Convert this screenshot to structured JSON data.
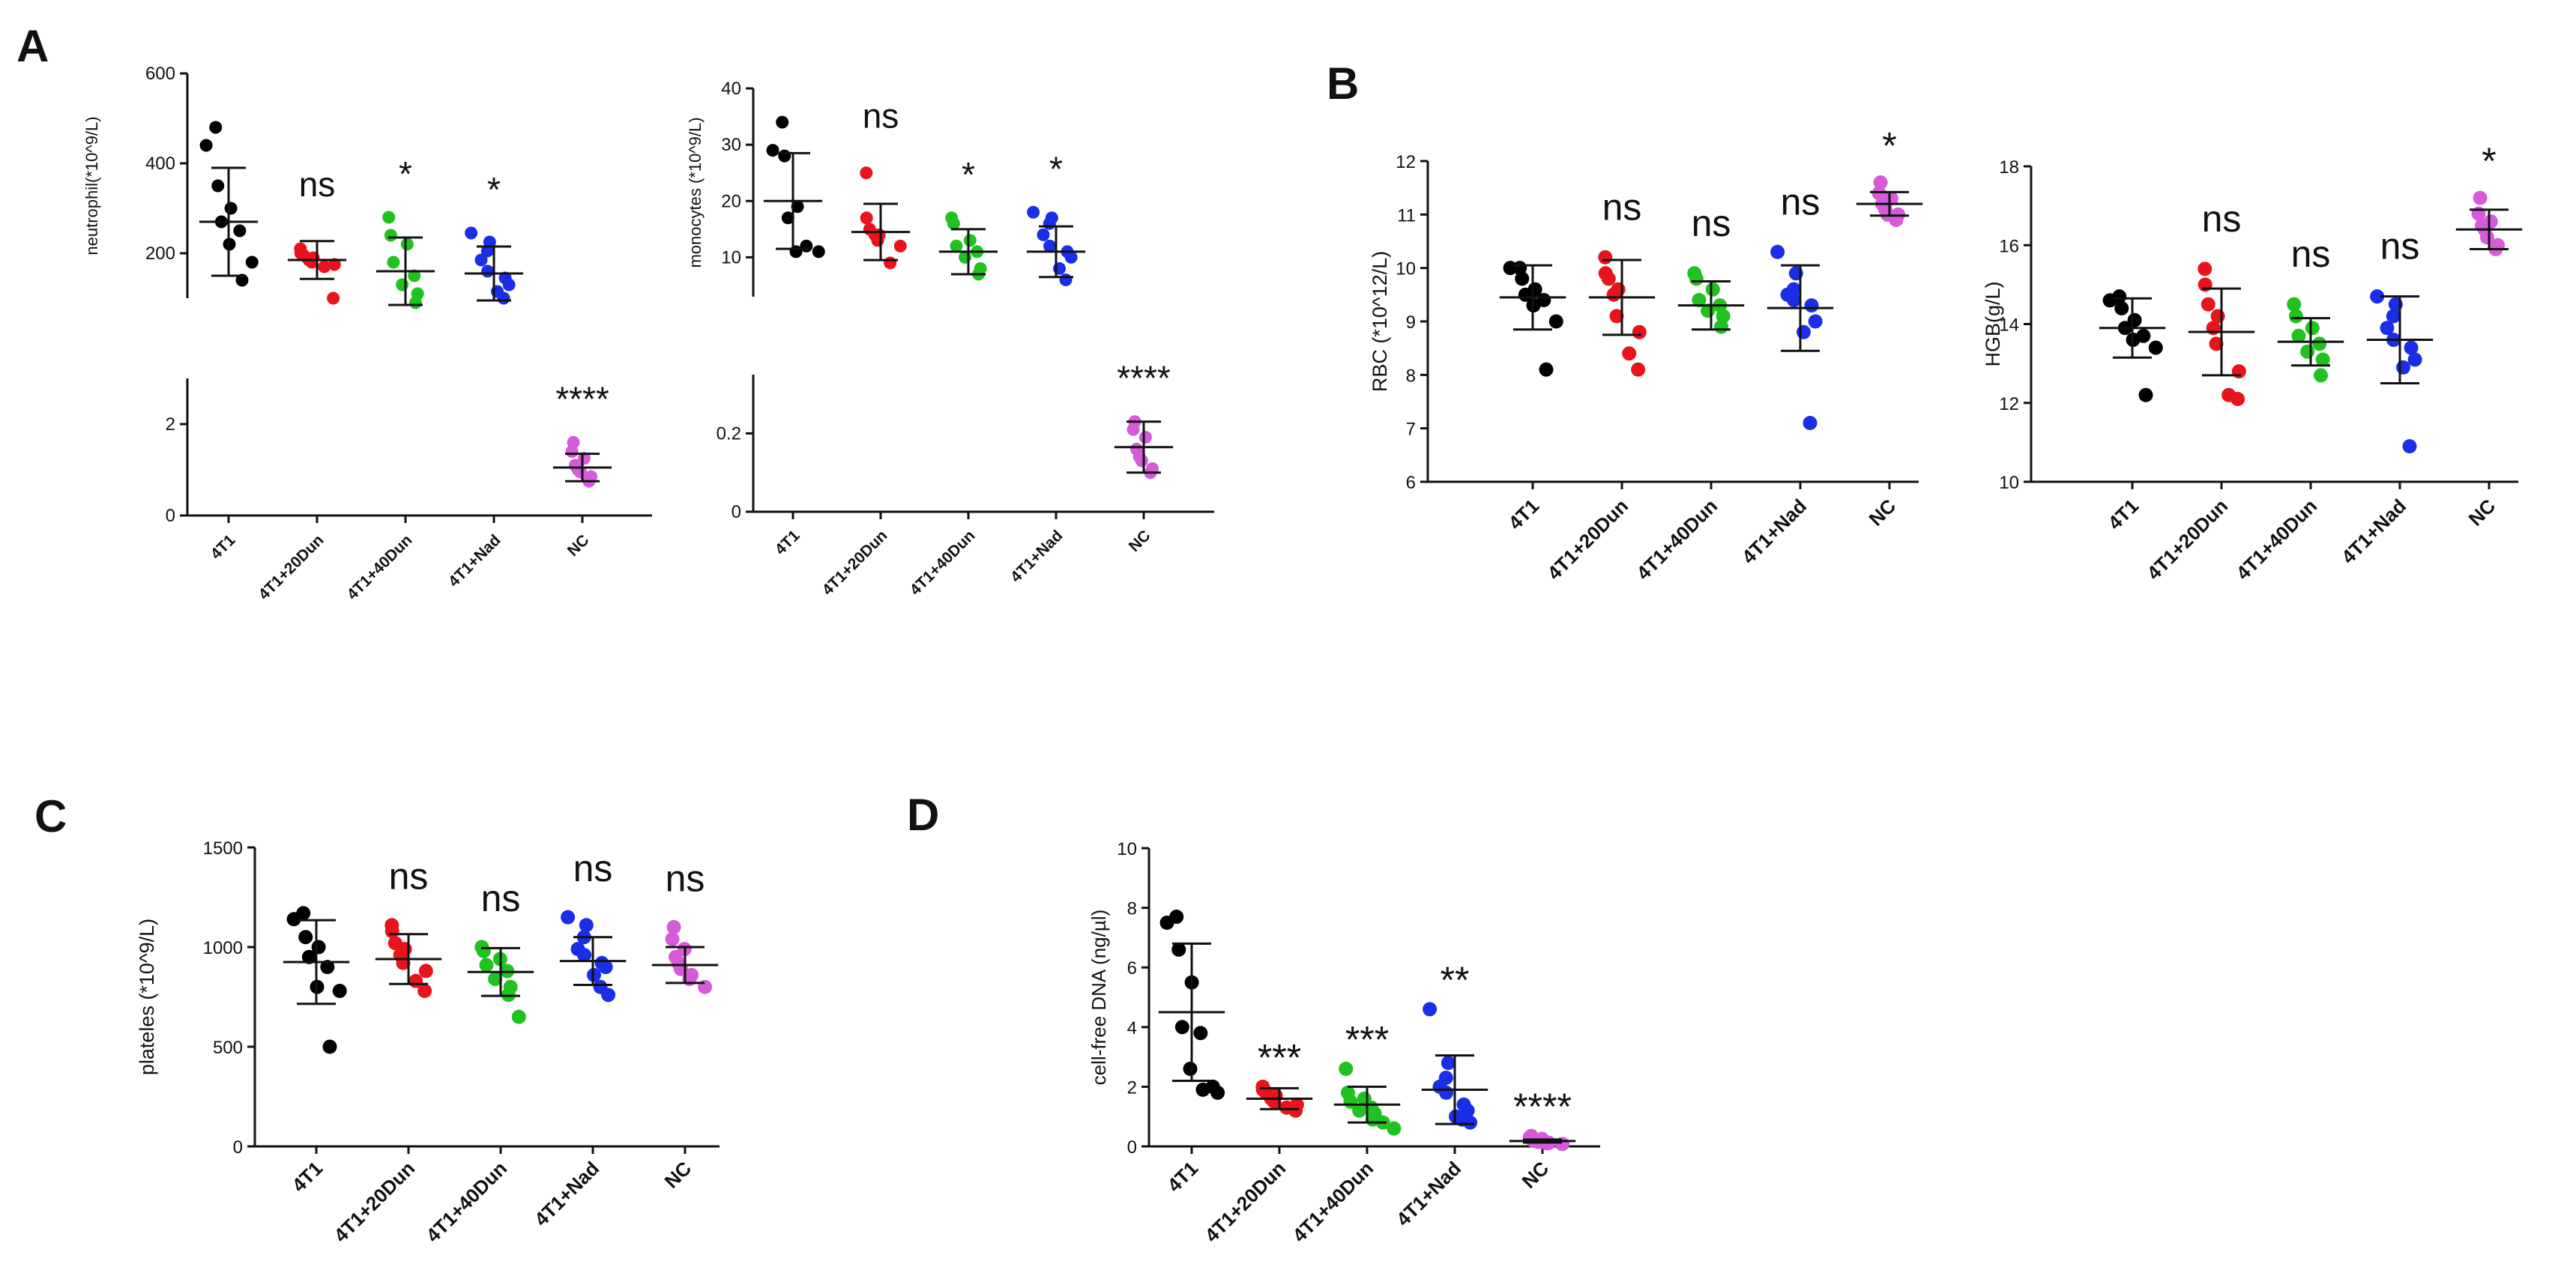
{
  "chart_data": [
    {
      "panel": "A",
      "type": "scatter",
      "ylabel": "neutrophil(*10^9/L)",
      "categories": [
        "4T1",
        "4T1+20Dun",
        "4T1+40Dun",
        "4T1+Nad",
        "NC"
      ],
      "ylim_top": [
        100,
        600
      ],
      "yticks_top": [
        200,
        400,
        600
      ],
      "ylim_bottom": [
        0,
        3
      ],
      "yticks_bottom": [
        0,
        2
      ],
      "colors": [
        "#000000",
        "#e8141c",
        "#1fc21f",
        "#1a2ee6",
        "#d65ad9"
      ],
      "series": [
        {
          "name": "4T1",
          "points": [
            480,
            440,
            350,
            300,
            270,
            250,
            220,
            180,
            140
          ],
          "mean": 270,
          "sd": 120,
          "sig": ""
        },
        {
          "name": "4T1+20Dun",
          "points": [
            210,
            200,
            195,
            190,
            185,
            180,
            175,
            170,
            100
          ],
          "mean": 185,
          "sd": 42,
          "sig": "ns"
        },
        {
          "name": "4T1+40Dun",
          "points": [
            280,
            240,
            220,
            180,
            150,
            130,
            110,
            90
          ],
          "mean": 160,
          "sd": 75,
          "sig": "*"
        },
        {
          "name": "4T1+Nad",
          "points": [
            245,
            225,
            205,
            185,
            160,
            145,
            130,
            115,
            100
          ],
          "mean": 155,
          "sd": 60,
          "sig": "*"
        },
        {
          "name": "NC",
          "points": [
            1.6,
            1.4,
            1.25,
            1.1,
            1.0,
            0.95,
            0.85,
            0.75
          ],
          "mean": 1.05,
          "sd": 0.3,
          "sig": "****"
        }
      ]
    },
    {
      "panel": "A2",
      "type": "scatter",
      "ylabel": "monocytes (*10^9/L)",
      "categories": [
        "4T1",
        "4T1+20Dun",
        "4T1+40Dun",
        "4T1+Nad",
        "NC"
      ],
      "ylim_top": [
        3,
        40
      ],
      "yticks_top": [
        10,
        20,
        30,
        40
      ],
      "ylim_bottom": [
        0,
        0.35
      ],
      "yticks_bottom": [
        0,
        0.2
      ],
      "colors": [
        "#000000",
        "#e8141c",
        "#1fc21f",
        "#1a2ee6",
        "#d65ad9"
      ],
      "series": [
        {
          "name": "4T1",
          "points": [
            34,
            29,
            28,
            19,
            17,
            12,
            11,
            11
          ],
          "mean": 20,
          "sd": 8.5,
          "sig": ""
        },
        {
          "name": "4T1+20Dun",
          "points": [
            25,
            17,
            15,
            14,
            14,
            13,
            12,
            9
          ],
          "mean": 14.5,
          "sd": 5,
          "sig": "ns"
        },
        {
          "name": "4T1+40Dun",
          "points": [
            17,
            16,
            13,
            12,
            11,
            10,
            8,
            7
          ],
          "mean": 11,
          "sd": 4,
          "sig": "*"
        },
        {
          "name": "4T1+Nad",
          "points": [
            18,
            17,
            16,
            14,
            12,
            11,
            10,
            8,
            6
          ],
          "mean": 11,
          "sd": 4.5,
          "sig": "*"
        },
        {
          "name": "NC",
          "points": [
            0.23,
            0.21,
            0.19,
            0.16,
            0.14,
            0.13,
            0.11,
            0.1
          ],
          "mean": 0.165,
          "sd": 0.065,
          "sig": "****"
        }
      ]
    },
    {
      "panel": "B",
      "type": "scatter",
      "ylabel": "RBC (*10^12/L)",
      "categories": [
        "4T1",
        "4T1+20Dun",
        "4T1+40Dun",
        "4T1+Nad",
        "NC"
      ],
      "ylim": [
        6,
        12
      ],
      "yticks": [
        6,
        7,
        8,
        9,
        10,
        11,
        12
      ],
      "colors": [
        "#000000",
        "#e8141c",
        "#1fc21f",
        "#1a2ee6",
        "#d65ad9"
      ],
      "series": [
        {
          "name": "4T1",
          "points": [
            10.0,
            10.0,
            9.8,
            9.6,
            9.5,
            9.4,
            9.3,
            9.0,
            8.1
          ],
          "mean": 9.45,
          "sd": 0.6,
          "sig": ""
        },
        {
          "name": "4T1+20Dun",
          "points": [
            10.2,
            9.9,
            9.8,
            9.6,
            9.5,
            9.1,
            8.8,
            8.4,
            8.1
          ],
          "mean": 9.45,
          "sd": 0.7,
          "sig": "ns"
        },
        {
          "name": "4T1+40Dun",
          "points": [
            9.9,
            9.8,
            9.6,
            9.4,
            9.3,
            9.2,
            9.1,
            8.9
          ],
          "mean": 9.3,
          "sd": 0.45,
          "sig": "ns"
        },
        {
          "name": "4T1+Nad",
          "points": [
            10.3,
            9.9,
            9.6,
            9.5,
            9.4,
            9.3,
            9.0,
            8.8,
            7.1
          ],
          "mean": 9.25,
          "sd": 0.8,
          "sig": "ns"
        },
        {
          "name": "NC",
          "points": [
            11.6,
            11.4,
            11.3,
            11.2,
            11.1,
            11.0,
            11.0,
            10.9
          ],
          "mean": 11.2,
          "sd": 0.22,
          "sig": "*"
        }
      ]
    },
    {
      "panel": "B2",
      "type": "scatter",
      "ylabel": "HGB(g/L)",
      "categories": [
        "4T1",
        "4T1+20Dun",
        "4T1+40Dun",
        "4T1+Nad",
        "NC"
      ],
      "ylim": [
        10,
        18
      ],
      "yticks": [
        10,
        12,
        14,
        16,
        18
      ],
      "colors": [
        "#000000",
        "#e8141c",
        "#1fc21f",
        "#1a2ee6",
        "#d65ad9"
      ],
      "series": [
        {
          "name": "4T1",
          "points": [
            14.7,
            14.6,
            14.4,
            14.1,
            13.9,
            13.7,
            13.6,
            13.4,
            12.2
          ],
          "mean": 13.9,
          "sd": 0.75,
          "sig": ""
        },
        {
          "name": "4T1+20Dun",
          "points": [
            15.4,
            15.0,
            14.5,
            14.2,
            13.9,
            13.5,
            12.8,
            12.2,
            12.1
          ],
          "mean": 13.8,
          "sd": 1.1,
          "sig": "ns"
        },
        {
          "name": "4T1+40Dun",
          "points": [
            14.5,
            14.2,
            13.9,
            13.7,
            13.5,
            13.3,
            13.1,
            12.7
          ],
          "mean": 13.55,
          "sd": 0.6,
          "sig": "ns"
        },
        {
          "name": "4T1+Nad",
          "points": [
            14.7,
            14.5,
            14.2,
            13.9,
            13.6,
            13.4,
            13.1,
            12.9,
            10.9
          ],
          "mean": 13.6,
          "sd": 1.1,
          "sig": "ns"
        },
        {
          "name": "NC",
          "points": [
            17.2,
            16.8,
            16.6,
            16.5,
            16.4,
            16.2,
            16.0,
            15.9
          ],
          "mean": 16.4,
          "sd": 0.5,
          "sig": "*"
        }
      ]
    },
    {
      "panel": "C",
      "type": "scatter",
      "ylabel": "plateles (*10^9/L)",
      "categories": [
        "4T1",
        "4T1+20Dun",
        "4T1+40Dun",
        "4T1+Nad",
        "NC"
      ],
      "ylim": [
        0,
        1500
      ],
      "yticks": [
        0,
        500,
        1000,
        1500
      ],
      "colors": [
        "#000000",
        "#e8141c",
        "#1fc21f",
        "#1a2ee6",
        "#d65ad9"
      ],
      "series": [
        {
          "name": "4T1",
          "points": [
            1170,
            1140,
            1050,
            1000,
            950,
            900,
            800,
            780,
            500
          ],
          "mean": 925,
          "sd": 210,
          "sig": ""
        },
        {
          "name": "4T1+20Dun",
          "points": [
            1110,
            1080,
            1020,
            990,
            960,
            920,
            880,
            830,
            780
          ],
          "mean": 940,
          "sd": 125,
          "sig": "ns"
        },
        {
          "name": "4T1+40Dun",
          "points": [
            1000,
            980,
            940,
            910,
            880,
            840,
            800,
            760,
            650
          ],
          "mean": 875,
          "sd": 120,
          "sig": "ns"
        },
        {
          "name": "4T1+Nad",
          "points": [
            1150,
            1110,
            1050,
            990,
            960,
            920,
            900,
            860,
            800,
            760
          ],
          "mean": 930,
          "sd": 120,
          "sig": "ns"
        },
        {
          "name": "NC",
          "points": [
            1100,
            1040,
            990,
            950,
            920,
            890,
            860,
            840,
            800
          ],
          "mean": 910,
          "sd": 90,
          "sig": "ns"
        }
      ]
    },
    {
      "panel": "D",
      "type": "scatter",
      "ylabel": "cell-free DNA (ng/µl)",
      "categories": [
        "4T1",
        "4T1+20Dun",
        "4T1+40Dun",
        "4T1+Nad",
        "NC"
      ],
      "ylim": [
        0,
        10
      ],
      "yticks": [
        0,
        2,
        4,
        6,
        8,
        10
      ],
      "colors": [
        "#000000",
        "#e8141c",
        "#1fc21f",
        "#1a2ee6",
        "#d65ad9"
      ],
      "series": [
        {
          "name": "4T1",
          "points": [
            7.7,
            7.5,
            6.6,
            5.5,
            4.0,
            3.8,
            2.6,
            2.0,
            1.9,
            1.8
          ],
          "mean": 4.5,
          "sd": 2.3,
          "sig": ""
        },
        {
          "name": "4T1+20Dun",
          "points": [
            2.0,
            1.9,
            1.8,
            1.7,
            1.6,
            1.5,
            1.4,
            1.3,
            1.2
          ],
          "mean": 1.6,
          "sd": 0.35,
          "sig": "***"
        },
        {
          "name": "4T1+40Dun",
          "points": [
            2.6,
            1.8,
            1.6,
            1.5,
            1.3,
            1.2,
            1.1,
            0.9,
            0.8,
            0.6
          ],
          "mean": 1.4,
          "sd": 0.6,
          "sig": "***"
        },
        {
          "name": "4T1+Nad",
          "points": [
            4.6,
            2.8,
            2.3,
            2.0,
            1.8,
            1.4,
            1.2,
            1.0,
            0.9,
            0.8
          ],
          "mean": 1.9,
          "sd": 1.15,
          "sig": "**"
        },
        {
          "name": "NC",
          "points": [
            0.35,
            0.3,
            0.25,
            0.2,
            0.18,
            0.15,
            0.12,
            0.1,
            0.08
          ],
          "mean": 0.18,
          "sd": 0.05,
          "sig": "****"
        }
      ]
    }
  ]
}
